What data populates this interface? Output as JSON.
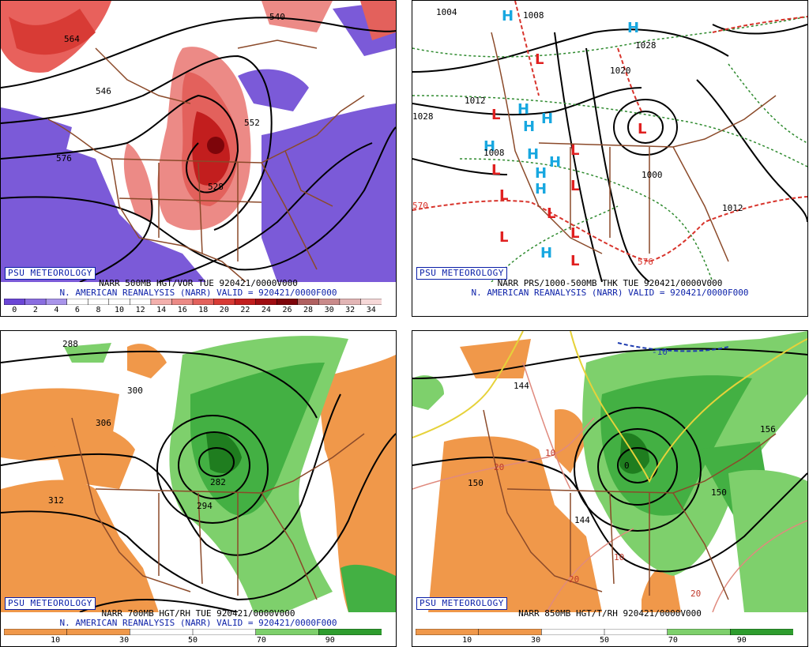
{
  "panels": [
    {
      "id": "vort500",
      "logo": "PSU METEOROLOGY",
      "line1": "NARR 500MB HGT/VOR TUE 920421/0000V000",
      "line2": "N. AMERICAN REANALYSIS (NARR) VALID = 920421/0000F000",
      "colorbar": {
        "ticks": [
          "0",
          "2",
          "4",
          "6",
          "8",
          "10",
          "12",
          "14",
          "16",
          "18",
          "20",
          "22",
          "24",
          "26",
          "28",
          "30",
          "32",
          "34"
        ],
        "colors": [
          "#6b46d6",
          "#8a6ee0",
          "#a995ea",
          "#ffffff",
          "#ffffff",
          "#ffffff",
          "#ffffff",
          "#f3b0ad",
          "#ec8a86",
          "#e3615c",
          "#d83b35",
          "#c21e1e",
          "#a00d12",
          "#7d050a",
          "#b06060",
          "#c98a8a",
          "#e2b5b5",
          "#f6d8d8"
        ]
      },
      "labels": [
        "540",
        "564",
        "576",
        "528",
        "546",
        "552"
      ]
    },
    {
      "id": "mslp",
      "logo": "PSU METEOROLOGY",
      "line1": "NARR PRS/1000-500MB THK TUE 920421/0000V000",
      "line2": "N. AMERICAN REANALYSIS (NARR) VALID = 920421/0000F000",
      "labels": [
        "1004",
        "1008",
        "1028",
        "1012",
        "1020",
        "1028",
        "1000",
        "1008",
        "1012",
        "570",
        "576"
      ]
    },
    {
      "id": "rh700",
      "logo": "PSU METEOROLOGY",
      "line1": "NARR 700MB HGT/RH TUE 920421/0000V000",
      "line2": "N. AMERICAN REANALYSIS (NARR) VALID = 920421/0000F000",
      "colorbar": {
        "ticks": [
          "10",
          "30",
          "50",
          "70",
          "90"
        ],
        "colors": [
          "#f0984a",
          "#f0984a",
          "#ffffff",
          "#ffffff",
          "#7ed06c",
          "#2e9d2e"
        ]
      },
      "labels": [
        "288",
        "294",
        "300",
        "306",
        "312",
        "282",
        "294"
      ]
    },
    {
      "id": "t850",
      "logo": "PSU METEOROLOGY",
      "line1": "NARR 850MB HGT/T/RH 920421/0000V000",
      "line2": "",
      "colorbar": {
        "ticks": [
          "10",
          "30",
          "50",
          "70",
          "90"
        ],
        "colors": [
          "#f0984a",
          "#f0984a",
          "#ffffff",
          "#ffffff",
          "#7ed06c",
          "#2e9d2e"
        ]
      },
      "labels": [
        "-10",
        "144",
        "156",
        "150",
        "0",
        "10",
        "20",
        "10",
        "20",
        "20",
        "150",
        "144"
      ]
    }
  ],
  "colors": {
    "purple": "#7b5ad8",
    "red": "#d8342c",
    "orange": "#f0984a",
    "green": "#43b043",
    "darkgreen": "#1f7d1f",
    "blue_h": "#17a7e0",
    "red_l": "#e02020",
    "borders": "#8b4a2a"
  },
  "icons": [
    "high-pressure-icon",
    "low-pressure-icon"
  ]
}
